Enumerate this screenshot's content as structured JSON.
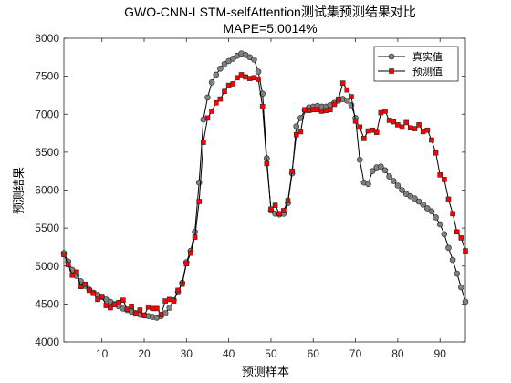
{
  "chart_data": {
    "type": "line",
    "title": "GWO-CNN-LSTM-selfAttention测试集预测结果对比",
    "subtitle": "MAPE=5.0014%",
    "xlabel": "预测样本",
    "ylabel": "预测结果",
    "xlim": [
      1,
      96
    ],
    "ylim": [
      4000,
      8000
    ],
    "xticks": [
      10,
      20,
      30,
      40,
      50,
      60,
      70,
      80,
      90
    ],
    "yticks": [
      4000,
      4500,
      5000,
      5500,
      6000,
      6500,
      7000,
      7500,
      8000
    ],
    "grid": false,
    "legend_position": "top-right",
    "x": [
      1,
      2,
      3,
      4,
      5,
      6,
      7,
      8,
      9,
      10,
      11,
      12,
      13,
      14,
      15,
      16,
      17,
      18,
      19,
      20,
      21,
      22,
      23,
      24,
      25,
      26,
      27,
      28,
      29,
      30,
      31,
      32,
      33,
      34,
      35,
      36,
      37,
      38,
      39,
      40,
      41,
      42,
      43,
      44,
      45,
      46,
      47,
      48,
      49,
      50,
      51,
      52,
      53,
      54,
      55,
      56,
      57,
      58,
      59,
      60,
      61,
      62,
      63,
      64,
      65,
      66,
      67,
      68,
      69,
      70,
      71,
      72,
      73,
      74,
      75,
      76,
      77,
      78,
      79,
      80,
      81,
      82,
      83,
      84,
      85,
      86,
      87,
      88,
      89,
      90,
      91,
      92,
      93,
      94,
      95,
      96
    ],
    "series": [
      {
        "name": "真实值",
        "color": "#808080",
        "marker": "circle",
        "values": [
          5170,
          5060,
          4950,
          4870,
          4800,
          4740,
          4690,
          4650,
          4620,
          4590,
          4560,
          4530,
          4500,
          4470,
          4440,
          4420,
          4400,
          4380,
          4360,
          4350,
          4340,
          4330,
          4320,
          4340,
          4380,
          4450,
          4550,
          4660,
          4780,
          5050,
          5200,
          5450,
          6100,
          6930,
          7220,
          7420,
          7520,
          7600,
          7660,
          7700,
          7730,
          7770,
          7800,
          7780,
          7750,
          7720,
          7560,
          7270,
          6420,
          5730,
          5690,
          5680,
          5690,
          5830,
          6220,
          6840,
          6950,
          7050,
          7090,
          7100,
          7110,
          7100,
          7100,
          7120,
          7150,
          7180,
          7200,
          7180,
          7120,
          6950,
          6400,
          6100,
          6080,
          6250,
          6300,
          6310,
          6260,
          6180,
          6120,
          6060,
          6000,
          5950,
          5920,
          5890,
          5850,
          5810,
          5760,
          5720,
          5640,
          5550,
          5420,
          5240,
          5080,
          4900,
          4720,
          4530
        ]
      },
      {
        "name": "预测值",
        "color": "#ff0000",
        "marker": "square",
        "values": [
          5150,
          5020,
          4880,
          4920,
          4730,
          4760,
          4680,
          4640,
          4560,
          4600,
          4480,
          4450,
          4490,
          4520,
          4550,
          4430,
          4470,
          4380,
          4420,
          4350,
          4460,
          4440,
          4440,
          4360,
          4540,
          4560,
          4540,
          4680,
          4760,
          5030,
          5170,
          5380,
          5850,
          6630,
          6950,
          7040,
          7150,
          7200,
          7300,
          7380,
          7400,
          7480,
          7520,
          7490,
          7470,
          7480,
          7460,
          7100,
          6350,
          5750,
          5800,
          5690,
          5730,
          5860,
          6250,
          6730,
          6770,
          7060,
          7050,
          7060,
          7060,
          7040,
          7050,
          7060,
          7130,
          7200,
          7410,
          7320,
          7230,
          6910,
          6830,
          6680,
          6780,
          6790,
          6760,
          7020,
          7040,
          6920,
          6900,
          6860,
          6830,
          6890,
          6820,
          6810,
          6860,
          6770,
          6790,
          6660,
          6490,
          6200,
          6140,
          5880,
          5690,
          5450,
          5370,
          5200
        ]
      }
    ]
  }
}
